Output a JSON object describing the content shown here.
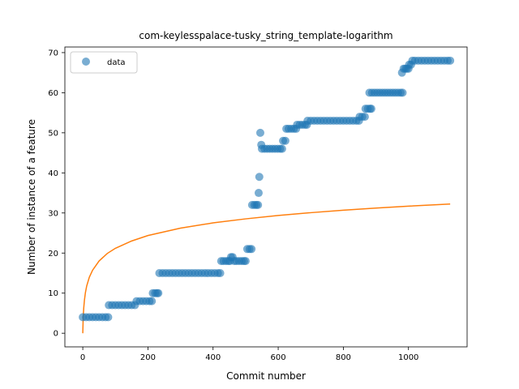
{
  "chart_data": {
    "type": "scatter",
    "title": "com-keylesspalace-tusky_string_template-logarithm",
    "xlabel": "Commit number",
    "ylabel": "Number of instance of a feature",
    "xlim": [
      -55,
      1180
    ],
    "ylim": [
      -3.4,
      71.4
    ],
    "xticks": [
      0,
      200,
      400,
      600,
      800,
      1000
    ],
    "yticks": [
      0,
      10,
      20,
      30,
      40,
      50,
      60,
      70
    ],
    "legend": {
      "position": "top-left",
      "entries": [
        "data"
      ]
    },
    "grid": false,
    "colors": {
      "data": "#1f77b4",
      "fit": "#ff7f0e"
    },
    "series": [
      {
        "name": "data",
        "kind": "scatter",
        "points": [
          [
            0,
            4
          ],
          [
            10,
            4
          ],
          [
            20,
            4
          ],
          [
            30,
            4
          ],
          [
            40,
            4
          ],
          [
            50,
            4
          ],
          [
            60,
            4
          ],
          [
            70,
            4
          ],
          [
            78,
            4
          ],
          [
            80,
            7
          ],
          [
            90,
            7
          ],
          [
            100,
            7
          ],
          [
            110,
            7
          ],
          [
            120,
            7
          ],
          [
            130,
            7
          ],
          [
            140,
            7
          ],
          [
            150,
            7
          ],
          [
            160,
            7
          ],
          [
            165,
            8
          ],
          [
            175,
            8
          ],
          [
            185,
            8
          ],
          [
            195,
            8
          ],
          [
            205,
            8
          ],
          [
            212,
            8
          ],
          [
            215,
            10
          ],
          [
            222,
            10
          ],
          [
            228,
            10
          ],
          [
            232,
            10
          ],
          [
            235,
            15
          ],
          [
            245,
            15
          ],
          [
            255,
            15
          ],
          [
            265,
            15
          ],
          [
            275,
            15
          ],
          [
            285,
            15
          ],
          [
            295,
            15
          ],
          [
            305,
            15
          ],
          [
            315,
            15
          ],
          [
            325,
            15
          ],
          [
            335,
            15
          ],
          [
            345,
            15
          ],
          [
            355,
            15
          ],
          [
            365,
            15
          ],
          [
            375,
            15
          ],
          [
            385,
            15
          ],
          [
            395,
            15
          ],
          [
            405,
            15
          ],
          [
            415,
            15
          ],
          [
            422,
            15
          ],
          [
            425,
            18
          ],
          [
            432,
            18
          ],
          [
            440,
            18
          ],
          [
            447,
            18
          ],
          [
            452,
            18
          ],
          [
            455,
            19
          ],
          [
            460,
            19
          ],
          [
            465,
            18
          ],
          [
            472,
            18
          ],
          [
            480,
            18
          ],
          [
            488,
            18
          ],
          [
            495,
            18
          ],
          [
            500,
            18
          ],
          [
            505,
            21
          ],
          [
            512,
            21
          ],
          [
            518,
            21
          ],
          [
            520,
            32
          ],
          [
            527,
            32
          ],
          [
            533,
            32
          ],
          [
            538,
            32
          ],
          [
            540,
            35
          ],
          [
            542,
            39
          ],
          [
            545,
            50
          ],
          [
            548,
            47
          ],
          [
            550,
            46
          ],
          [
            558,
            46
          ],
          [
            566,
            46
          ],
          [
            574,
            46
          ],
          [
            582,
            46
          ],
          [
            590,
            46
          ],
          [
            598,
            46
          ],
          [
            606,
            46
          ],
          [
            612,
            46
          ],
          [
            615,
            48
          ],
          [
            622,
            48
          ],
          [
            625,
            51
          ],
          [
            632,
            51
          ],
          [
            640,
            51
          ],
          [
            648,
            51
          ],
          [
            655,
            51
          ],
          [
            658,
            52
          ],
          [
            666,
            52
          ],
          [
            674,
            52
          ],
          [
            682,
            52
          ],
          [
            688,
            52
          ],
          [
            690,
            53
          ],
          [
            700,
            53
          ],
          [
            710,
            53
          ],
          [
            720,
            53
          ],
          [
            730,
            53
          ],
          [
            740,
            53
          ],
          [
            750,
            53
          ],
          [
            760,
            53
          ],
          [
            770,
            53
          ],
          [
            780,
            53
          ],
          [
            790,
            53
          ],
          [
            800,
            53
          ],
          [
            810,
            53
          ],
          [
            820,
            53
          ],
          [
            830,
            53
          ],
          [
            840,
            53
          ],
          [
            848,
            53
          ],
          [
            850,
            54
          ],
          [
            858,
            54
          ],
          [
            866,
            54
          ],
          [
            868,
            56
          ],
          [
            875,
            56
          ],
          [
            882,
            56
          ],
          [
            886,
            56
          ],
          [
            880,
            60
          ],
          [
            888,
            60
          ],
          [
            896,
            60
          ],
          [
            904,
            60
          ],
          [
            912,
            60
          ],
          [
            920,
            60
          ],
          [
            928,
            60
          ],
          [
            936,
            60
          ],
          [
            944,
            60
          ],
          [
            952,
            60
          ],
          [
            960,
            60
          ],
          [
            968,
            60
          ],
          [
            976,
            60
          ],
          [
            982,
            60
          ],
          [
            980,
            65
          ],
          [
            985,
            66
          ],
          [
            990,
            66
          ],
          [
            995,
            66
          ],
          [
            1000,
            66
          ],
          [
            1002,
            67
          ],
          [
            1008,
            67
          ],
          [
            1012,
            68
          ],
          [
            1020,
            68
          ],
          [
            1030,
            68
          ],
          [
            1040,
            68
          ],
          [
            1050,
            68
          ],
          [
            1060,
            68
          ],
          [
            1070,
            68
          ],
          [
            1080,
            68
          ],
          [
            1090,
            68
          ],
          [
            1100,
            68
          ],
          [
            1110,
            68
          ],
          [
            1120,
            68
          ],
          [
            1128,
            68
          ]
        ]
      },
      {
        "kind": "line",
        "points": [
          [
            0,
            0
          ],
          [
            1,
            3.18
          ],
          [
            2,
            5.04
          ],
          [
            3,
            6.36
          ],
          [
            5,
            8.22
          ],
          [
            8,
            10.09
          ],
          [
            12,
            11.78
          ],
          [
            20,
            13.96
          ],
          [
            30,
            15.71
          ],
          [
            50,
            18.02
          ],
          [
            75,
            19.89
          ],
          [
            100,
            21.18
          ],
          [
            150,
            23.01
          ],
          [
            200,
            24.37
          ],
          [
            300,
            26.22
          ],
          [
            400,
            27.52
          ],
          [
            500,
            28.53
          ],
          [
            600,
            29.38
          ],
          [
            700,
            30.07
          ],
          [
            800,
            30.69
          ],
          [
            900,
            31.23
          ],
          [
            1000,
            31.7
          ],
          [
            1128,
            32.24
          ]
        ]
      }
    ]
  }
}
